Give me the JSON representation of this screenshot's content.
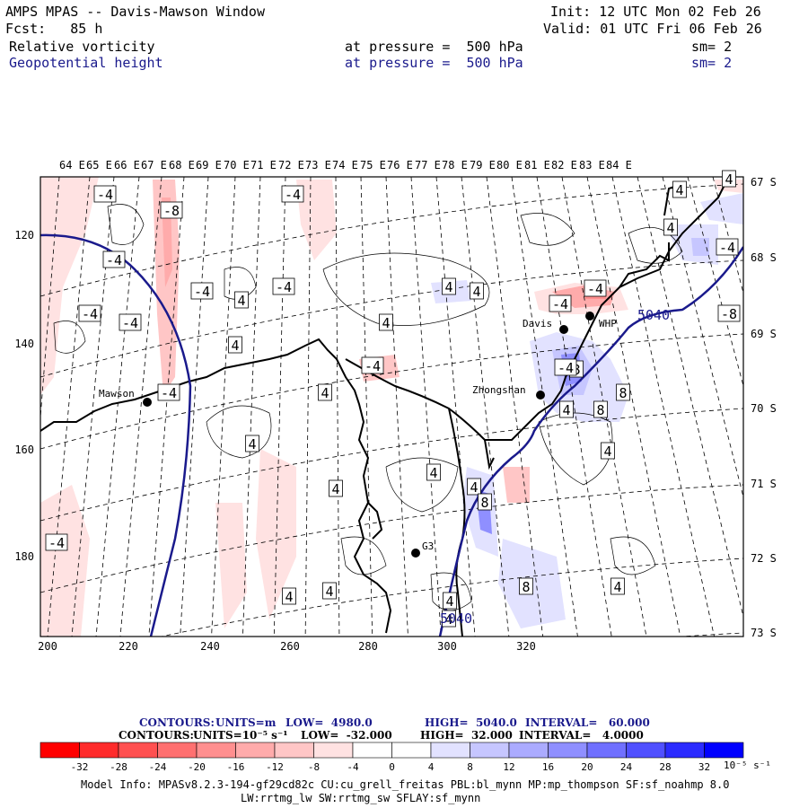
{
  "header": {
    "title": "AMPS MPAS -- Davis-Mawson Window",
    "init": "Init: 12 UTC Mon 02 Feb 26",
    "fcst": "Fcst:   85 h",
    "valid": "Valid: 01 UTC Fri 06 Feb 26",
    "field1": "Relative vorticity",
    "field1_level": "at pressure =  500 hPa",
    "field1_sm": "sm= 2",
    "field2": "Geopotential height",
    "field2_level": "at pressure =  500 hPa",
    "field2_sm": "sm= 2"
  },
  "map": {
    "lon_labels": [
      "64 E",
      "65 E",
      "66 E",
      "67 E",
      "68 E",
      "69 E",
      "70 E",
      "71 E",
      "72 E",
      "73 E",
      "74 E",
      "75 E",
      "76 E",
      "77 E",
      "78 E",
      "79 E",
      "80 E",
      "81 E",
      "82 E",
      "83 E",
      "84 E"
    ],
    "lat_labels": [
      "67 S",
      "68 S",
      "69 S",
      "70 S",
      "71 S",
      "72 S",
      "73 S"
    ],
    "x_ticks": [
      "200",
      "220",
      "240",
      "260",
      "280",
      "300",
      "320"
    ],
    "y_ticks": [
      "120",
      "140",
      "160",
      "180"
    ],
    "stations": [
      {
        "name": "Mawson"
      },
      {
        "name": "Davis"
      },
      {
        "name": "WHP"
      },
      {
        "name": "Zhongshan"
      },
      {
        "name": "G3"
      }
    ],
    "height_labels": [
      "5040",
      "5040"
    ],
    "vort_labels": [
      "-4",
      "-8",
      "-4",
      "-4",
      "-4",
      "-4",
      "-4",
      "4",
      "-4",
      "4",
      "-4",
      "4",
      "-4",
      "4",
      "4",
      "4",
      "-4",
      "4",
      "4",
      "-4",
      "-4",
      "4",
      "8",
      "4",
      "-4",
      "-8",
      "8",
      "4",
      "8",
      "4",
      "4",
      "4",
      "4",
      "8",
      "4",
      "4",
      "4",
      "8",
      "4",
      "-4",
      "4"
    ]
  },
  "contours": {
    "line1_label": "CONTOURS:",
    "line1_units": "UNITS=m",
    "line1_low": "LOW=  4980.0",
    "line1_high": "HIGH=  5040.0",
    "line1_interval": "INTERVAL=   60.000",
    "line2_label": "CONTOURS:",
    "line2_units": "UNITS=10⁻⁵ s⁻¹",
    "line2_low": "LOW=  -32.000",
    "line2_high": "HIGH=  32.000",
    "line2_interval": "INTERVAL=   4.0000"
  },
  "colorbar": {
    "labels": [
      "-32",
      "-28",
      "-24",
      "-20",
      "-16",
      "-12",
      "-8",
      "-4",
      "0",
      "4",
      "8",
      "12",
      "16",
      "20",
      "24",
      "28",
      "32"
    ],
    "unit": "10⁻⁵ s⁻¹",
    "colors": [
      "#ff0000",
      "#ff2828",
      "#ff4f4f",
      "#ff7070",
      "#ff8f8f",
      "#ffabab",
      "#ffc6c6",
      "#ffe2e2",
      "#ffffff",
      "#ffffff",
      "#e2e2ff",
      "#c6c6ff",
      "#abababff",
      "#8f8fff",
      "#7070ff",
      "#4f4fff",
      "#2828ff",
      "#0000ff"
    ]
  },
  "model_info": {
    "line1": "Model Info: MPASv8.2.3-194-gf29cd82c CU:cu_grell_freitas PBL:bl_mynn MP:mp_thompson SF:sf_noahmp 8.0",
    "line2": "LW:rrtmg_lw SW:rrtmg_sw SFLAY:sf_mynn"
  }
}
